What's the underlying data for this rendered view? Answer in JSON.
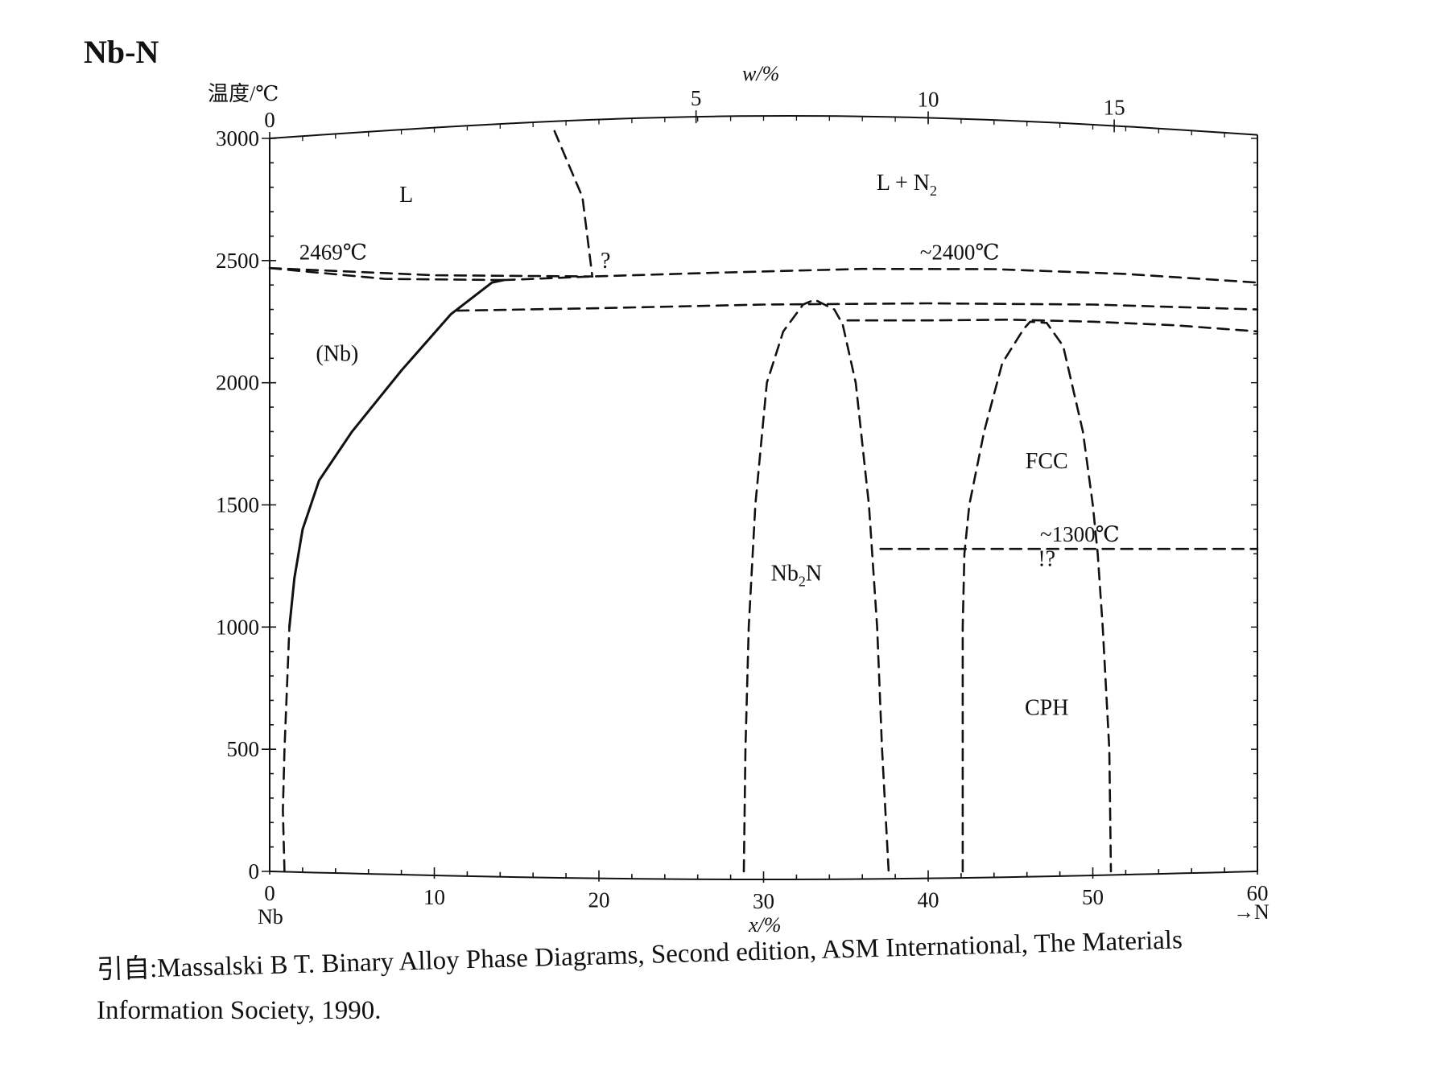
{
  "figure": {
    "system": "Nb-N",
    "citation_line1": "引自:Massalski B T. Binary Alloy Phase Diagrams, Second edition, ASM International, The Materials",
    "citation_line2": "Information Society, 1990."
  },
  "chart_data": {
    "type": "line",
    "title": "Nb-N",
    "ylabel": "温度/℃",
    "xlabel": "x/%",
    "top_axis_label": "w/%",
    "x_start_label": "Nb",
    "x_end_label": "→N",
    "xlim": [
      0,
      60
    ],
    "ylim": [
      0,
      3000
    ],
    "x_ticks": [
      0,
      10,
      20,
      30,
      40,
      50,
      60
    ],
    "y_ticks": [
      0,
      500,
      1000,
      1500,
      2000,
      2500,
      3000
    ],
    "top_ticks": [
      0,
      5,
      10,
      15
    ],
    "top_tick_x_at_pct": [
      0,
      25.9,
      40.0,
      51.3
    ],
    "phase_labels": [
      {
        "text": "L",
        "x": 8.3,
        "y": 2740
      },
      {
        "text": "L + N",
        "sub": "2",
        "x": 38.7,
        "y": 2790
      },
      {
        "text": "(Nb)",
        "x": 4.1,
        "y": 2090
      },
      {
        "text": "Nb",
        "sub": "2",
        "after": "N",
        "x": 32.0,
        "y": 1190
      },
      {
        "text": "FCC",
        "x": 47.2,
        "y": 1650
      },
      {
        "text": "!?",
        "x": 47.2,
        "y": 1250
      },
      {
        "text": "CPH",
        "x": 47.2,
        "y": 640
      },
      {
        "text": "?",
        "x": 20.4,
        "y": 2470
      }
    ],
    "temperature_labels": [
      {
        "text": "2469℃",
        "x": 1.8,
        "y": 2505
      },
      {
        "text": "~2400℃",
        "x": 39.5,
        "y": 2505
      },
      {
        "text": "~1300℃",
        "x": 46.8,
        "y": 1350
      }
    ],
    "series": [
      {
        "style": "solid",
        "points": [
          [
            1.2,
            1000
          ],
          [
            1.5,
            1200
          ],
          [
            2,
            1400
          ],
          [
            3,
            1600
          ],
          [
            5,
            1800
          ],
          [
            8,
            2050
          ],
          [
            11,
            2280
          ],
          [
            13.5,
            2410
          ],
          [
            14.2,
            2420
          ]
        ]
      },
      {
        "style": "dashed",
        "points": [
          [
            0.9,
            0
          ],
          [
            0.8,
            250
          ],
          [
            0.9,
            500
          ],
          [
            1.2,
            1000
          ]
        ]
      },
      {
        "style": "dashed",
        "points": [
          [
            0,
            2469
          ],
          [
            10,
            2440
          ],
          [
            19.6,
            2435
          ]
        ]
      },
      {
        "style": "dashed",
        "points": [
          [
            0,
            2469
          ],
          [
            7,
            2425
          ],
          [
            14.2,
            2420
          ]
        ]
      },
      {
        "style": "dashed",
        "points": [
          [
            14.2,
            2420
          ],
          [
            19.6,
            2435
          ],
          [
            27,
            2450
          ],
          [
            36,
            2466
          ],
          [
            44,
            2465
          ],
          [
            52,
            2445
          ],
          [
            60,
            2410
          ]
        ]
      },
      {
        "style": "dashed",
        "points": [
          [
            17.3,
            3030
          ],
          [
            19,
            2760
          ],
          [
            19.6,
            2435
          ]
        ]
      },
      {
        "style": "dashed",
        "points": [
          [
            11.4,
            2295
          ],
          [
            20,
            2305
          ],
          [
            30,
            2320
          ],
          [
            40,
            2325
          ],
          [
            50,
            2320
          ],
          [
            60,
            2300
          ]
        ]
      },
      {
        "style": "dashed",
        "points": [
          [
            28.8,
            0
          ],
          [
            28.9,
            500
          ],
          [
            29.1,
            1000
          ],
          [
            29.5,
            1500
          ],
          [
            30.2,
            2000
          ],
          [
            31.2,
            2210
          ],
          [
            32.4,
            2320
          ],
          [
            33.1,
            2340
          ],
          [
            34.3,
            2300
          ],
          [
            34.8,
            2240
          ],
          [
            35.6,
            2000
          ],
          [
            36.4,
            1500
          ],
          [
            36.9,
            1000
          ],
          [
            37.2,
            500
          ],
          [
            37.6,
            0
          ]
        ]
      },
      {
        "style": "dashed",
        "points": [
          [
            35.1,
            2255
          ],
          [
            40,
            2255
          ],
          [
            45,
            2258
          ],
          [
            50,
            2250
          ],
          [
            55,
            2235
          ],
          [
            60,
            2210
          ]
        ]
      },
      {
        "style": "dashed",
        "points": [
          [
            42.1,
            0
          ],
          [
            42.1,
            1000
          ],
          [
            42.2,
            1300
          ],
          [
            42.5,
            1500
          ],
          [
            43.4,
            1800
          ],
          [
            44.5,
            2080
          ],
          [
            45.8,
            2220
          ],
          [
            46.2,
            2250
          ],
          [
            47.2,
            2245
          ],
          [
            48.2,
            2150
          ],
          [
            49.4,
            1800
          ],
          [
            50.0,
            1500
          ],
          [
            50.3,
            1300
          ],
          [
            50.6,
            1000
          ],
          [
            51.0,
            500
          ],
          [
            51.1,
            0
          ]
        ]
      },
      {
        "style": "dashed",
        "points": [
          [
            37.1,
            1320
          ],
          [
            60,
            1320
          ]
        ]
      }
    ]
  }
}
